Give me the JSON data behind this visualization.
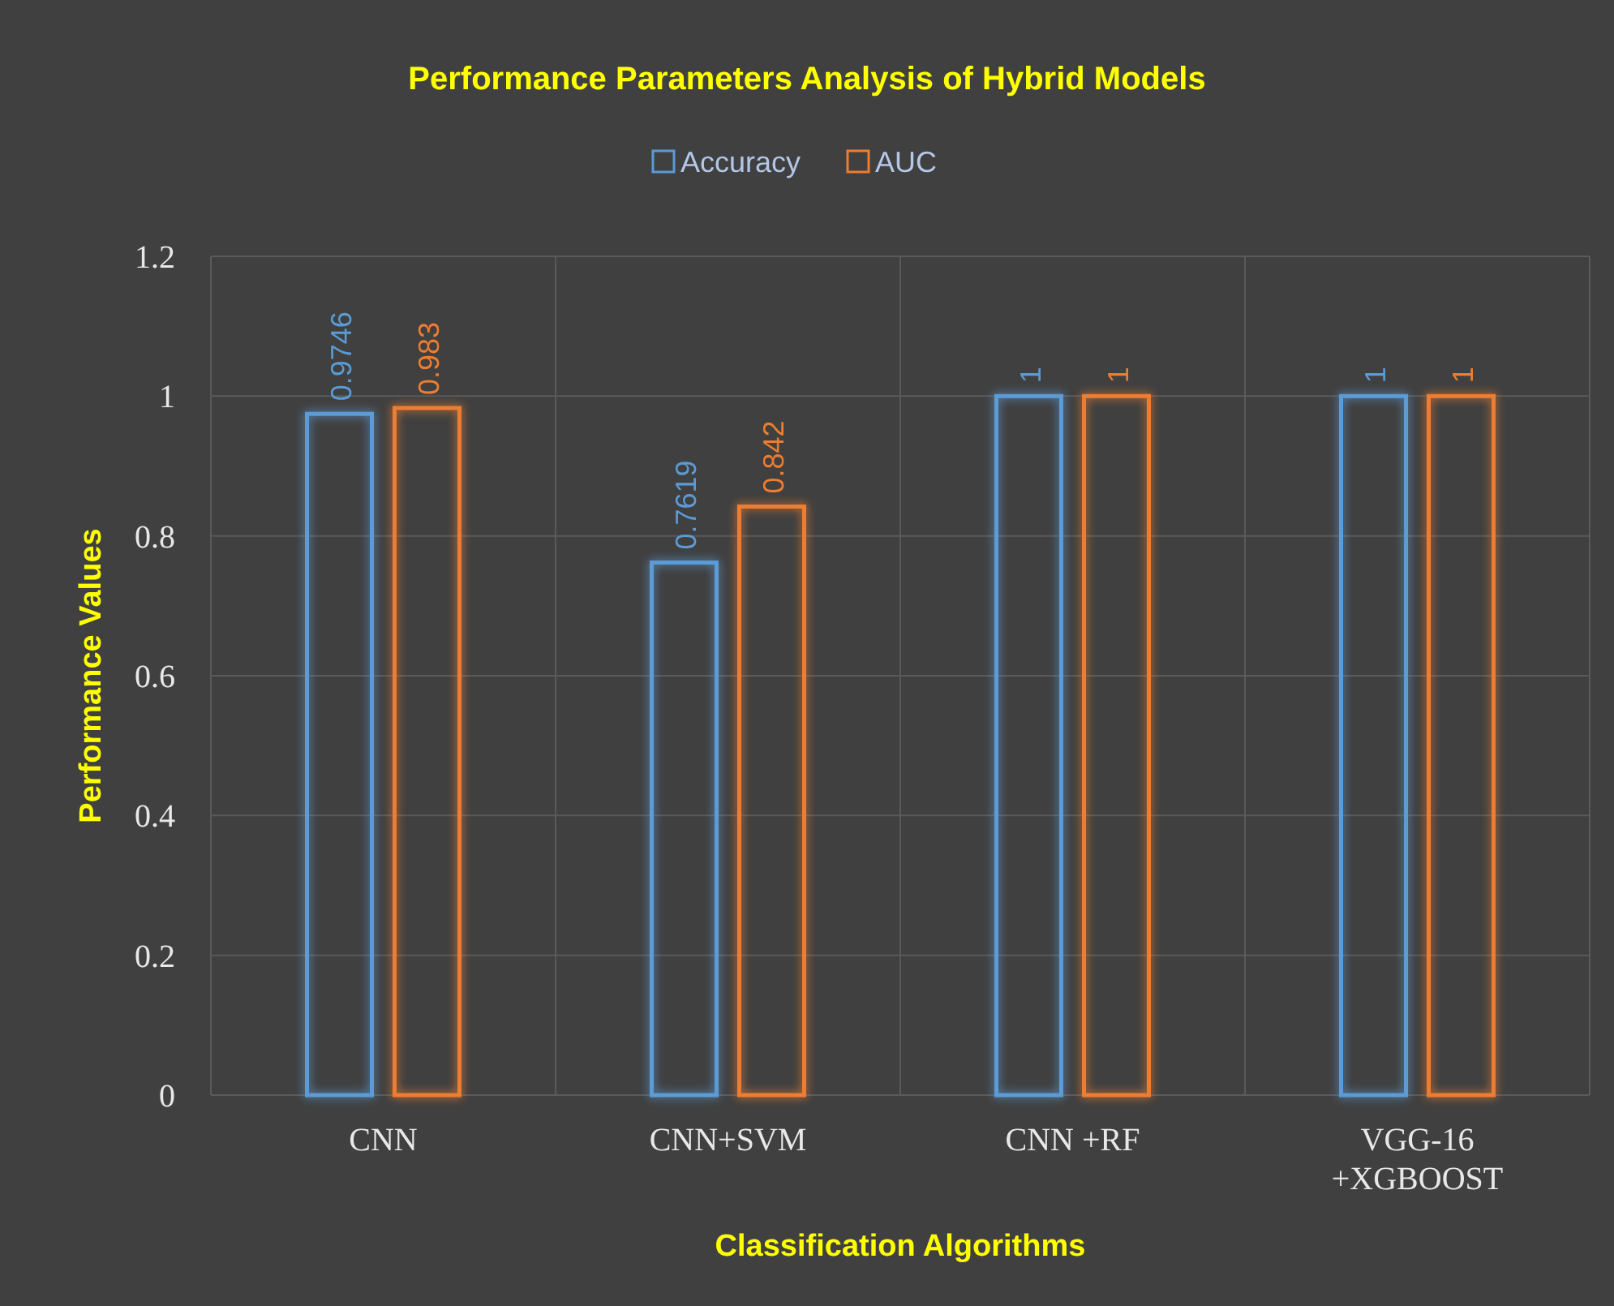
{
  "chart_data": {
    "type": "bar",
    "title": "Performance Parameters Analysis of Hybrid Models",
    "xlabel": "Classification Algorithms",
    "ylabel": "Performance Values",
    "categories": [
      "CNN",
      "CNN+SVM",
      "CNN +RF",
      "VGG-16 +XGBOOST"
    ],
    "series": [
      {
        "name": "Accuracy",
        "color": "#5b9bd5",
        "values": [
          0.9746,
          0.7619,
          1,
          1
        ]
      },
      {
        "name": "AUC",
        "color": "#ed7d31",
        "values": [
          0.983,
          0.842,
          1,
          1
        ]
      }
    ],
    "ylim": [
      0,
      1.2
    ],
    "yticks": [
      0,
      0.2,
      0.4,
      0.6,
      0.8,
      1,
      1.2
    ],
    "grid": true,
    "legend": "top",
    "data_labels": true
  }
}
